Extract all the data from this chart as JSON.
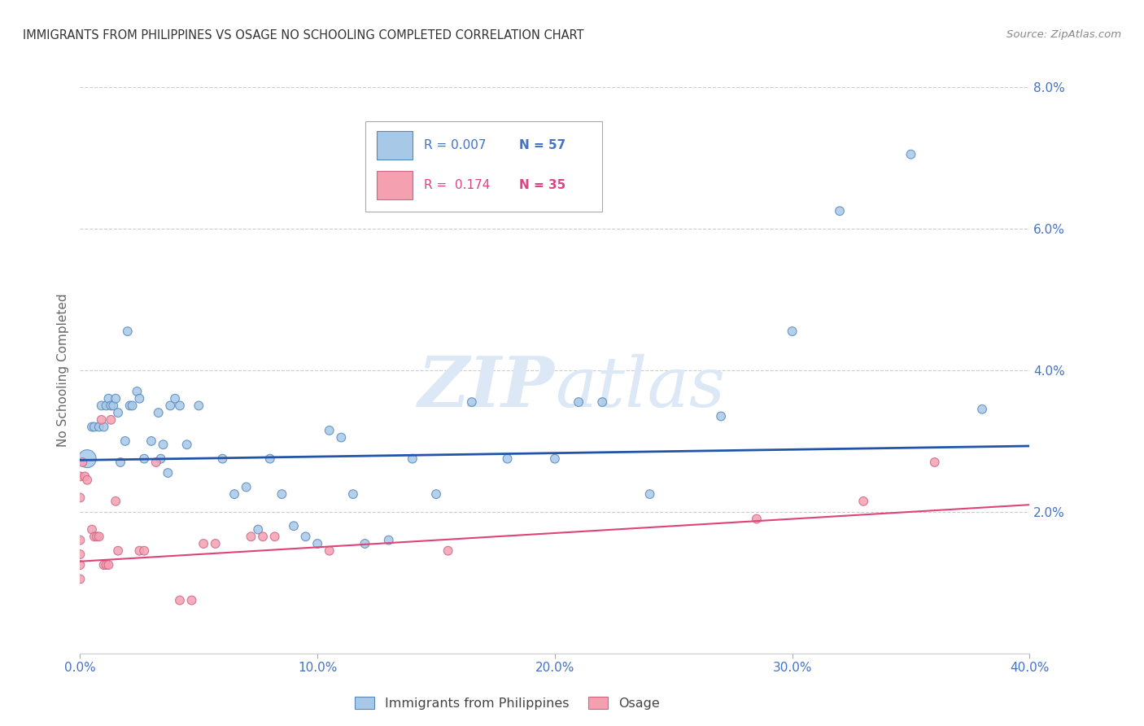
{
  "title": "IMMIGRANTS FROM PHILIPPINES VS OSAGE NO SCHOOLING COMPLETED CORRELATION CHART",
  "source": "Source: ZipAtlas.com",
  "ylabel": "No Schooling Completed",
  "xlim": [
    0.0,
    40.0
  ],
  "ylim": [
    0.0,
    8.0
  ],
  "yticks": [
    0.0,
    2.0,
    4.0,
    6.0,
    8.0
  ],
  "xticks": [
    0.0,
    10.0,
    20.0,
    30.0,
    40.0
  ],
  "xtick_labels": [
    "0.0%",
    "10.0%",
    "20.0%",
    "30.0%",
    "40.0%"
  ],
  "ytick_labels": [
    "0.0%",
    "2.0%",
    "4.0%",
    "6.0%",
    "8.0%"
  ],
  "color_blue_fill": "#a8c8e8",
  "color_blue_edge": "#5588bb",
  "color_blue_line": "#2255aa",
  "color_pink_fill": "#f4a0b0",
  "color_pink_edge": "#cc6688",
  "color_pink_line": "#dd4477",
  "watermark_color": "#dce8f5",
  "blue_points": [
    [
      0.3,
      2.75
    ],
    [
      0.5,
      3.2
    ],
    [
      0.6,
      3.2
    ],
    [
      0.8,
      3.2
    ],
    [
      0.9,
      3.5
    ],
    [
      1.0,
      3.2
    ],
    [
      1.1,
      3.5
    ],
    [
      1.2,
      3.6
    ],
    [
      1.3,
      3.5
    ],
    [
      1.4,
      3.5
    ],
    [
      1.5,
      3.6
    ],
    [
      1.6,
      3.4
    ],
    [
      1.7,
      2.7
    ],
    [
      1.9,
      3.0
    ],
    [
      2.0,
      4.55
    ],
    [
      2.1,
      3.5
    ],
    [
      2.2,
      3.5
    ],
    [
      2.4,
      3.7
    ],
    [
      2.5,
      3.6
    ],
    [
      2.7,
      2.75
    ],
    [
      3.0,
      3.0
    ],
    [
      3.3,
      3.4
    ],
    [
      3.4,
      2.75
    ],
    [
      3.5,
      2.95
    ],
    [
      3.7,
      2.55
    ],
    [
      3.8,
      3.5
    ],
    [
      4.0,
      3.6
    ],
    [
      4.2,
      3.5
    ],
    [
      4.5,
      2.95
    ],
    [
      5.0,
      3.5
    ],
    [
      6.0,
      2.75
    ],
    [
      6.5,
      2.25
    ],
    [
      7.0,
      2.35
    ],
    [
      7.5,
      1.75
    ],
    [
      8.0,
      2.75
    ],
    [
      8.5,
      2.25
    ],
    [
      9.0,
      1.8
    ],
    [
      9.5,
      1.65
    ],
    [
      10.0,
      1.55
    ],
    [
      10.5,
      3.15
    ],
    [
      11.0,
      3.05
    ],
    [
      11.5,
      2.25
    ],
    [
      12.0,
      1.55
    ],
    [
      13.0,
      1.6
    ],
    [
      14.0,
      2.75
    ],
    [
      15.0,
      2.25
    ],
    [
      16.5,
      3.55
    ],
    [
      18.0,
      2.75
    ],
    [
      20.0,
      2.75
    ],
    [
      21.0,
      3.55
    ],
    [
      22.0,
      3.55
    ],
    [
      24.0,
      2.25
    ],
    [
      27.0,
      3.35
    ],
    [
      30.0,
      4.55
    ],
    [
      32.0,
      6.25
    ],
    [
      35.0,
      7.05
    ],
    [
      38.0,
      3.45
    ]
  ],
  "blue_sizes": [
    250,
    60,
    60,
    60,
    60,
    60,
    60,
    60,
    60,
    60,
    60,
    60,
    60,
    60,
    60,
    60,
    60,
    60,
    60,
    60,
    60,
    60,
    60,
    60,
    60,
    60,
    60,
    60,
    60,
    60,
    60,
    60,
    60,
    60,
    60,
    60,
    60,
    60,
    60,
    60,
    60,
    60,
    60,
    60,
    60,
    60,
    60,
    60,
    60,
    60,
    60,
    60,
    60,
    60,
    60,
    60,
    60
  ],
  "pink_points": [
    [
      0.0,
      2.5
    ],
    [
      0.0,
      2.2
    ],
    [
      0.0,
      1.6
    ],
    [
      0.0,
      1.4
    ],
    [
      0.0,
      1.25
    ],
    [
      0.0,
      1.05
    ],
    [
      0.1,
      2.7
    ],
    [
      0.2,
      2.5
    ],
    [
      0.3,
      2.45
    ],
    [
      0.5,
      1.75
    ],
    [
      0.6,
      1.65
    ],
    [
      0.7,
      1.65
    ],
    [
      0.8,
      1.65
    ],
    [
      0.9,
      3.3
    ],
    [
      1.0,
      1.25
    ],
    [
      1.1,
      1.25
    ],
    [
      1.2,
      1.25
    ],
    [
      1.3,
      3.3
    ],
    [
      1.5,
      2.15
    ],
    [
      1.6,
      1.45
    ],
    [
      2.5,
      1.45
    ],
    [
      2.7,
      1.45
    ],
    [
      3.2,
      2.7
    ],
    [
      4.2,
      0.75
    ],
    [
      4.7,
      0.75
    ],
    [
      5.2,
      1.55
    ],
    [
      5.7,
      1.55
    ],
    [
      7.2,
      1.65
    ],
    [
      7.7,
      1.65
    ],
    [
      8.2,
      1.65
    ],
    [
      10.5,
      1.45
    ],
    [
      15.5,
      1.45
    ],
    [
      28.5,
      1.9
    ],
    [
      33.0,
      2.15
    ],
    [
      36.0,
      2.7
    ]
  ],
  "pink_sizes": [
    60,
    60,
    60,
    60,
    60,
    60,
    60,
    60,
    60,
    60,
    60,
    60,
    60,
    60,
    60,
    60,
    60,
    60,
    60,
    60,
    60,
    60,
    60,
    60,
    60,
    60,
    60,
    60,
    60,
    60,
    60,
    60,
    60,
    60,
    60
  ],
  "blue_trend_intercept": 2.73,
  "blue_trend_slope": 0.005,
  "pink_trend_intercept": 1.3,
  "pink_trend_slope": 0.02,
  "grid_color": "#cccccc",
  "background_color": "#ffffff",
  "legend_box_color": "#ffffff",
  "legend_box_edge": "#bbbbbb"
}
